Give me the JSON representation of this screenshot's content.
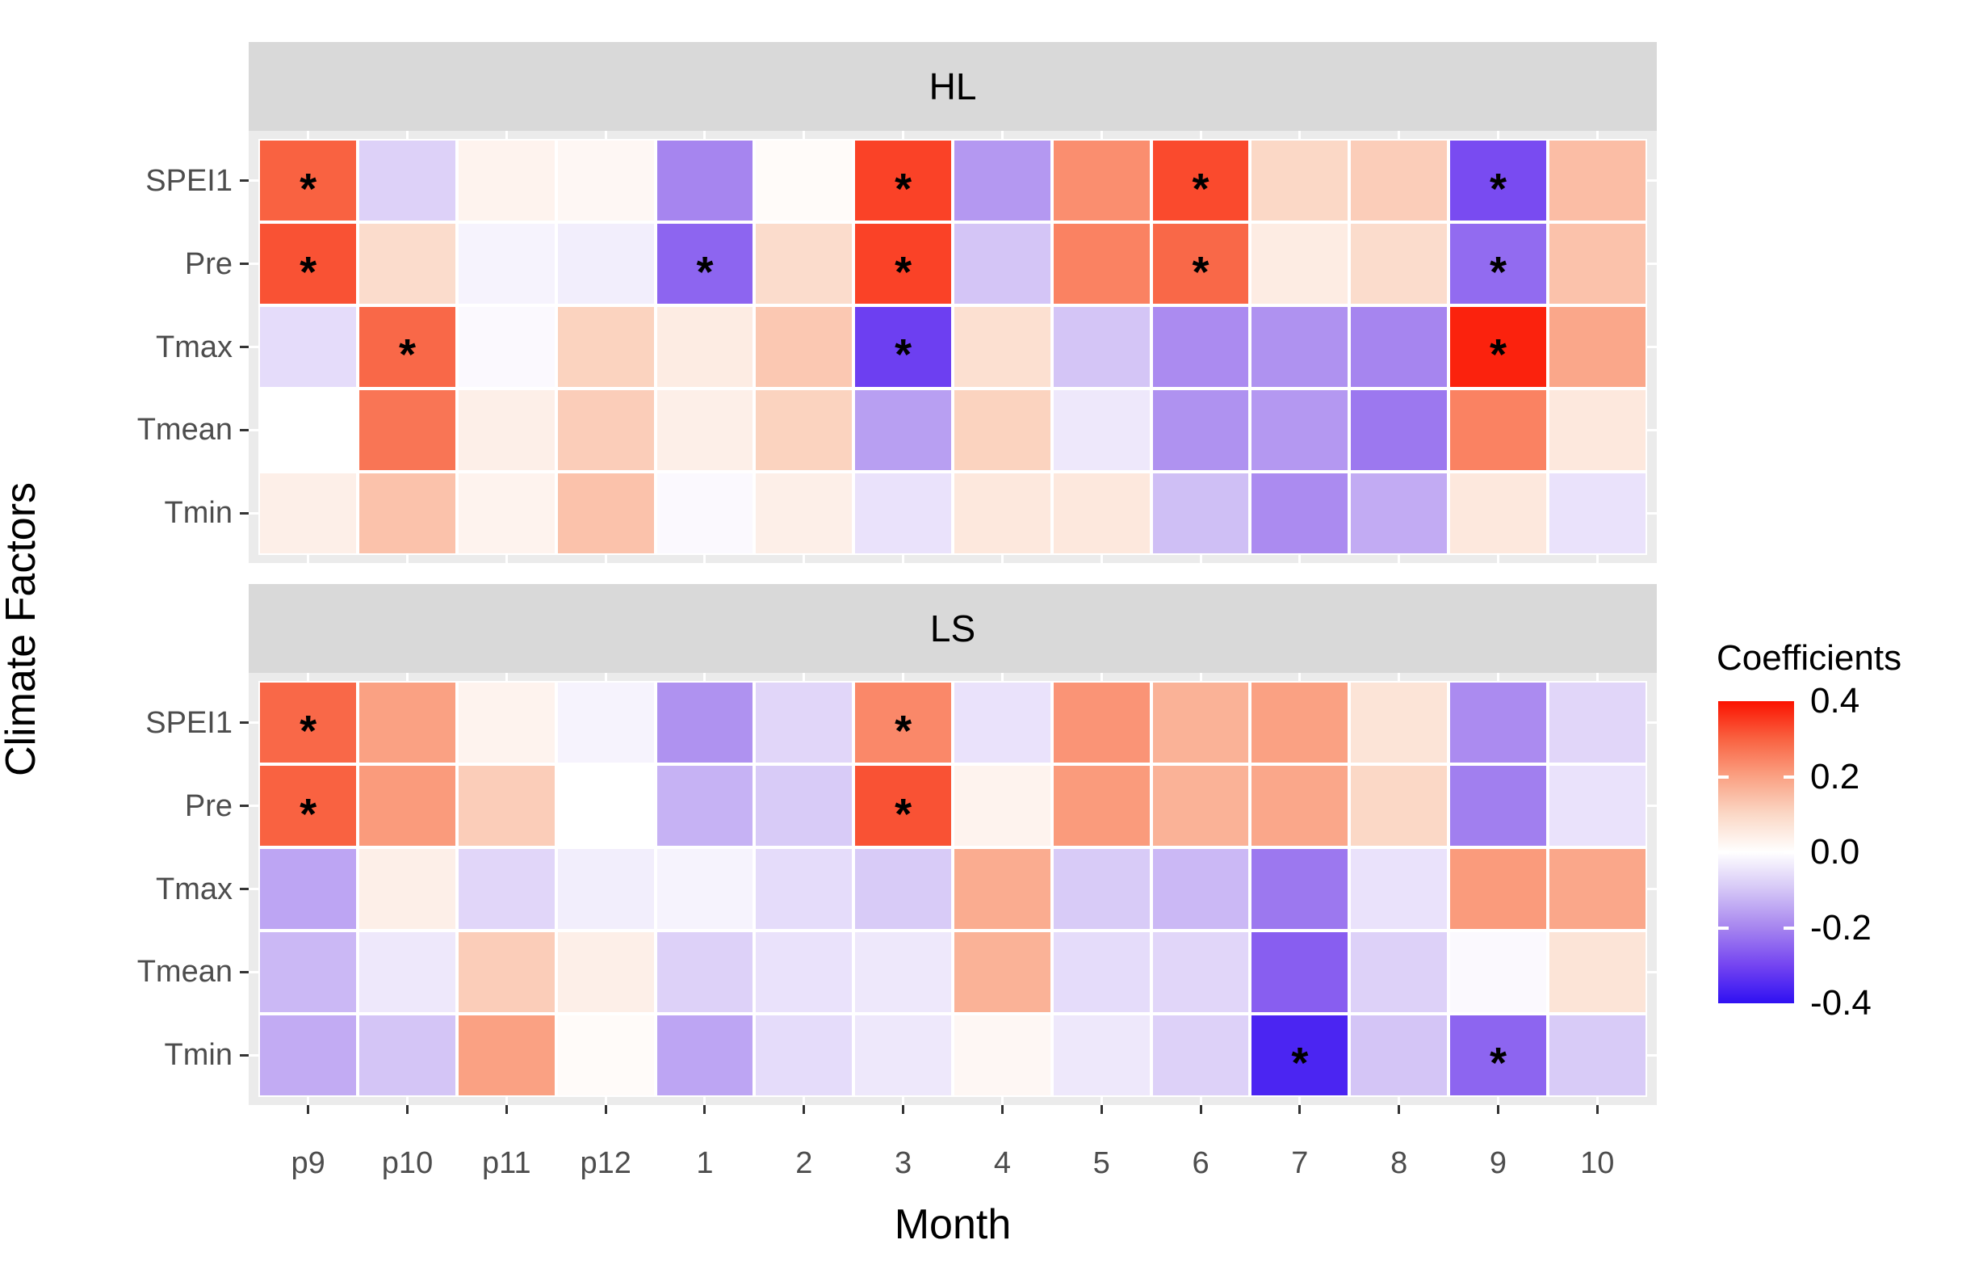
{
  "chart_data": {
    "type": "heatmap",
    "xlabel": "Month",
    "ylabel": "Climate Factors",
    "legend_title": "Coefficients",
    "x_categories": [
      "p9",
      "p10",
      "p11",
      "p12",
      "1",
      "2",
      "3",
      "4",
      "5",
      "6",
      "7",
      "8",
      "9",
      "10"
    ],
    "y_categories": [
      "SPEI1",
      "Pre",
      "Tmax",
      "Tmean",
      "Tmin"
    ],
    "sig_symbol": "*",
    "grid": false,
    "legend_position": "right",
    "color_scale": {
      "min": -0.4,
      "max": 0.4,
      "tick_labels": [
        "0.4",
        "0.2",
        "0.0",
        "-0.2",
        "-0.4"
      ],
      "tick_values": [
        0.4,
        0.2,
        0.0,
        -0.2,
        -0.4
      ],
      "legend_tick_marks": [
        0.2,
        0.0,
        -0.2
      ],
      "anchors": [
        [
          -0.4,
          "#2F10F2"
        ],
        [
          -0.3,
          "#7444F1"
        ],
        [
          -0.2,
          "#A685EF"
        ],
        [
          -0.1,
          "#D4C5F6"
        ],
        [
          0,
          "#FFFFFF"
        ],
        [
          0.1,
          "#FBD8C6"
        ],
        [
          0.2,
          "#FAA183"
        ],
        [
          0.3,
          "#F96241"
        ],
        [
          0.4,
          "#FB1200"
        ]
      ]
    },
    "panels": [
      {
        "label": "HL",
        "rows": [
          {
            "name": "SPEI1",
            "values": [
              0.3,
              -0.08,
              0.03,
              0.02,
              -0.2,
              0.01,
              0.34,
              -0.17,
              0.23,
              0.33,
              0.1,
              0.12,
              -0.29,
              0.15
            ],
            "sig": [
              1,
              0,
              0,
              0,
              0,
              0,
              1,
              0,
              0,
              1,
              0,
              0,
              1,
              0
            ]
          },
          {
            "name": "Pre",
            "values": [
              0.32,
              0.09,
              -0.02,
              -0.03,
              -0.25,
              0.09,
              0.34,
              -0.1,
              0.25,
              0.29,
              0.05,
              0.09,
              -0.24,
              0.14
            ],
            "sig": [
              1,
              0,
              0,
              0,
              1,
              0,
              1,
              0,
              0,
              1,
              0,
              0,
              1,
              0
            ]
          },
          {
            "name": "Tmax",
            "values": [
              -0.06,
              0.29,
              -0.01,
              0.11,
              0.05,
              0.13,
              -0.31,
              0.08,
              -0.1,
              -0.19,
              -0.18,
              -0.2,
              0.38,
              0.19
            ],
            "sig": [
              0,
              1,
              0,
              0,
              0,
              0,
              1,
              0,
              0,
              0,
              0,
              0,
              1,
              0
            ]
          },
          {
            "name": "Tmean",
            "values": [
              0.0,
              0.27,
              0.04,
              0.12,
              0.04,
              0.11,
              -0.16,
              0.11,
              -0.04,
              -0.18,
              -0.17,
              -0.22,
              0.25,
              0.06
            ],
            "sig": [
              0,
              0,
              0,
              0,
              0,
              0,
              0,
              0,
              0,
              0,
              0,
              0,
              0,
              0
            ]
          },
          {
            "name": "Tmin",
            "values": [
              0.04,
              0.14,
              0.03,
              0.14,
              -0.01,
              0.04,
              -0.05,
              0.06,
              0.06,
              -0.11,
              -0.19,
              -0.14,
              0.06,
              -0.05
            ],
            "sig": [
              0,
              0,
              0,
              0,
              0,
              0,
              0,
              0,
              0,
              0,
              0,
              0,
              0,
              0
            ]
          }
        ]
      },
      {
        "label": "LS",
        "rows": [
          {
            "name": "SPEI1",
            "values": [
              0.29,
              0.2,
              0.03,
              -0.02,
              -0.18,
              -0.07,
              0.24,
              -0.05,
              0.22,
              0.17,
              0.2,
              0.07,
              -0.19,
              -0.07
            ],
            "sig": [
              1,
              0,
              0,
              0,
              0,
              0,
              1,
              0,
              0,
              0,
              0,
              0,
              0,
              0
            ]
          },
          {
            "name": "Pre",
            "values": [
              0.3,
              0.21,
              0.12,
              0.0,
              -0.13,
              -0.09,
              0.32,
              0.03,
              0.21,
              0.17,
              0.19,
              0.1,
              -0.21,
              -0.05
            ],
            "sig": [
              1,
              0,
              0,
              0,
              0,
              0,
              1,
              0,
              0,
              0,
              0,
              0,
              0,
              0
            ]
          },
          {
            "name": "Tmax",
            "values": [
              -0.15,
              0.04,
              -0.07,
              -0.03,
              -0.02,
              -0.06,
              -0.09,
              0.18,
              -0.09,
              -0.12,
              -0.22,
              -0.05,
              0.21,
              0.19
            ],
            "sig": [
              0,
              0,
              0,
              0,
              0,
              0,
              0,
              0,
              0,
              0,
              0,
              0,
              0,
              0
            ]
          },
          {
            "name": "Tmean",
            "values": [
              -0.12,
              -0.04,
              0.12,
              0.04,
              -0.08,
              -0.05,
              -0.04,
              0.17,
              -0.06,
              -0.07,
              -0.26,
              -0.08,
              -0.01,
              0.07
            ],
            "sig": [
              0,
              0,
              0,
              0,
              0,
              0,
              0,
              0,
              0,
              0,
              0,
              0,
              0,
              0
            ]
          },
          {
            "name": "Tmin",
            "values": [
              -0.14,
              -0.1,
              0.2,
              0.01,
              -0.15,
              -0.06,
              -0.04,
              0.02,
              -0.04,
              -0.08,
              -0.36,
              -0.1,
              -0.25,
              -0.09
            ],
            "sig": [
              0,
              0,
              0,
              0,
              0,
              0,
              0,
              0,
              0,
              0,
              1,
              0,
              1,
              0
            ]
          }
        ]
      }
    ]
  },
  "colors": {
    "strip_background": "#D9D9D9",
    "panel_background": "#EBEBEB",
    "gridline": "#FFFFFF",
    "cell_border": "#FFFFFF",
    "tick_mark": "#333333",
    "axis_text": "#4D4D4D",
    "title_text": "#000000"
  }
}
